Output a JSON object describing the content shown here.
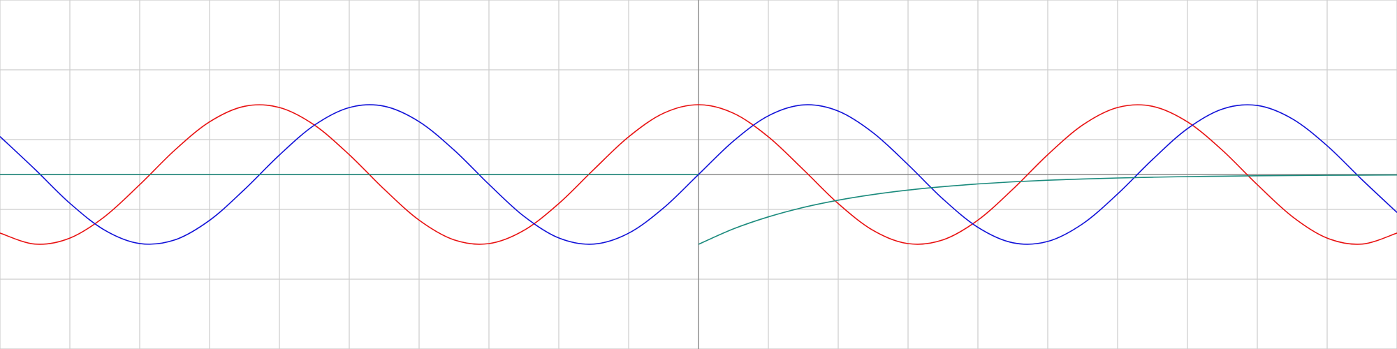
{
  "chart_data": {
    "type": "line",
    "xlim": [
      -10,
      10
    ],
    "ylim": [
      -2.5,
      2.5
    ],
    "xticks": [
      -10,
      -9,
      -8,
      -7,
      -6,
      -5,
      -4,
      -3,
      -2,
      -1,
      0,
      1,
      2,
      3,
      4,
      5,
      6,
      7,
      8,
      9,
      10
    ],
    "yticks": [
      -2.5,
      -1.5,
      -0.5,
      0.5,
      1.5,
      2.5
    ],
    "grid": true,
    "series": [
      {
        "color": "#e81010",
        "x": [
          -10,
          -9.5,
          -9,
          -8.5,
          -8,
          -7.5,
          -7,
          -6.5,
          -6,
          -5.5,
          -5,
          -4.5,
          -4,
          -3.5,
          -3,
          -2.5,
          -2,
          -1.5,
          -1,
          -0.5,
          0,
          0.5,
          1,
          1.5,
          2,
          2.5,
          3,
          3.5,
          4,
          4.5,
          5,
          5.5,
          6,
          6.5,
          7,
          7.5,
          8,
          8.5,
          9,
          9.5,
          10
        ],
        "values": [
          -0.839,
          -0.997,
          -0.911,
          -0.602,
          -0.146,
          0.347,
          0.754,
          0.977,
          0.96,
          0.709,
          0.284,
          -0.211,
          -0.654,
          -0.936,
          -0.99,
          -0.801,
          -0.416,
          0.071,
          0.54,
          0.878,
          1,
          0.878,
          0.54,
          0.071,
          -0.416,
          -0.801,
          -0.99,
          -0.936,
          -0.654,
          -0.211,
          0.284,
          0.709,
          0.96,
          0.977,
          0.754,
          0.347,
          -0.146,
          -0.602,
          -0.911,
          -0.997,
          -0.839
        ]
      },
      {
        "color": "#1010d8",
        "x": [
          -10,
          -9.5,
          -9,
          -8.5,
          -8,
          -7.5,
          -7,
          -6.5,
          -6,
          -5.5,
          -5,
          -4.5,
          -4,
          -3.5,
          -3,
          -2.5,
          -2,
          -1.5,
          -1,
          -0.5,
          0,
          0.5,
          1,
          1.5,
          2,
          2.5,
          3,
          3.5,
          4,
          4.5,
          5,
          5.5,
          6,
          6.5,
          7,
          7.5,
          8,
          8.5,
          9,
          9.5,
          10
        ],
        "values": [
          0.544,
          0.075,
          -0.412,
          -0.798,
          -0.989,
          -0.938,
          -0.657,
          -0.215,
          0.279,
          0.706,
          0.959,
          0.978,
          0.757,
          0.351,
          -0.141,
          -0.598,
          -0.909,
          -0.997,
          -0.841,
          -0.479,
          0,
          0.479,
          0.841,
          0.997,
          0.909,
          0.598,
          0.141,
          -0.351,
          -0.757,
          -0.978,
          -0.959,
          -0.706,
          -0.279,
          0.215,
          0.657,
          0.938,
          0.989,
          0.798,
          0.412,
          -0.075,
          -0.544
        ]
      },
      {
        "color": "#1a8a7c",
        "x": [
          -10,
          0
        ],
        "values": [
          0,
          0
        ]
      },
      {
        "color": "#1a8a7c",
        "x": [
          0,
          0.5,
          1,
          1.5,
          2,
          2.5,
          3,
          3.5,
          4,
          4.5,
          5,
          5.5,
          6,
          6.5,
          7,
          7.5,
          8,
          8.5,
          9,
          9.5,
          10
        ],
        "values": [
          -1,
          -0.779,
          -0.607,
          -0.472,
          -0.368,
          -0.287,
          -0.223,
          -0.174,
          -0.135,
          -0.105,
          -0.082,
          -0.064,
          -0.05,
          -0.039,
          -0.03,
          -0.024,
          -0.018,
          -0.014,
          -0.011,
          -0.009,
          -0.007
        ]
      }
    ]
  }
}
